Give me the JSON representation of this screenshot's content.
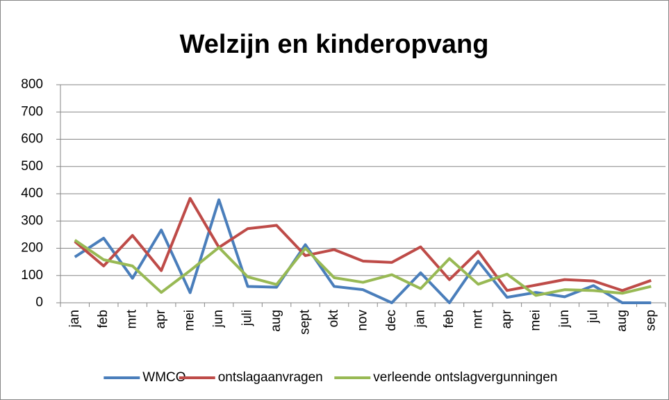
{
  "chart_data": {
    "type": "line",
    "title": "Welzijn en kinderopvang",
    "categories": [
      "jan",
      "feb",
      "mrt",
      "apr",
      "mei",
      "jun",
      "juli",
      "aug",
      "sept",
      "okt",
      "nov",
      "dec",
      "jan",
      "feb",
      "mrt",
      "apr",
      "mei",
      "jun",
      "jul",
      "aug",
      "sep"
    ],
    "series": [
      {
        "name": "WMCO",
        "color": "#4a7ebb",
        "values": [
          168,
          237,
          90,
          267,
          37,
          378,
          60,
          57,
          213,
          60,
          48,
          0,
          110,
          0,
          153,
          20,
          38,
          22,
          63,
          0,
          0
        ]
      },
      {
        "name": "ontslagaanvragen",
        "color": "#be4b48",
        "values": [
          225,
          135,
          247,
          118,
          383,
          203,
          272,
          284,
          173,
          195,
          153,
          148,
          205,
          85,
          188,
          45,
          65,
          85,
          80,
          45,
          82
        ]
      },
      {
        "name": "verleende ontslagvergunningen",
        "color": "#98b954",
        "values": [
          230,
          158,
          135,
          38,
          118,
          203,
          95,
          67,
          200,
          92,
          75,
          103,
          52,
          162,
          68,
          105,
          27,
          48,
          45,
          35,
          60
        ]
      }
    ],
    "ylim": [
      0,
      800
    ],
    "yticks": [
      0,
      100,
      200,
      300,
      400,
      500,
      600,
      700,
      800
    ],
    "grid": true,
    "legend": "bottom"
  }
}
